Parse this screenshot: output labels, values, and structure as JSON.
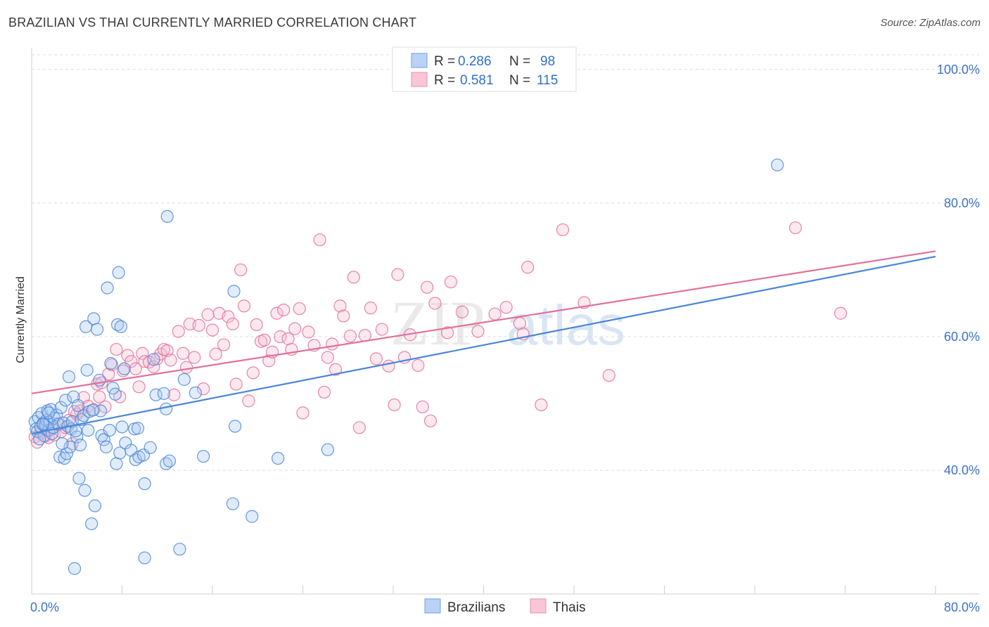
{
  "title": "BRAZILIAN VS THAI CURRENTLY MARRIED CORRELATION CHART",
  "source": "Source: ZipAtlas.com",
  "watermark": {
    "zip": "ZIP",
    "atlas": "atlas"
  },
  "legend": {
    "series": [
      {
        "r_label": "R =",
        "r_value": "0.286",
        "n_label": "N =",
        "n_value": "98",
        "fill": "#b9d2f5",
        "stroke": "#6fa0e6"
      },
      {
        "r_label": "R =",
        "r_value": "0.581",
        "n_label": "N =",
        "n_value": "115",
        "fill": "#f8c6d6",
        "stroke": "#ee8fb0"
      }
    ]
  },
  "chart_data": {
    "type": "scatter",
    "xlabel": "",
    "ylabel": "Currently Married",
    "xlim": [
      0,
      80
    ],
    "ylim": [
      20,
      102
    ],
    "x_tick_labels": [
      "0.0%",
      "80.0%"
    ],
    "y_ticks": [
      40,
      60,
      80,
      100
    ],
    "y_tick_labels": [
      "40.0%",
      "60.0%",
      "80.0%",
      "100.0%"
    ],
    "grid": true,
    "legend_position": "top-center",
    "series": [
      {
        "name": "Brazilians",
        "color": "#4a86d8",
        "fill": "#a9c8f0",
        "trend": {
          "x0": 0,
          "y0": 45.5,
          "x1": 80,
          "y1": 72.0
        },
        "points": [
          [
            0.3,
            47.3
          ],
          [
            0.4,
            46.2
          ],
          [
            0.5,
            45.8
          ],
          [
            0.6,
            47.9
          ],
          [
            0.8,
            46.5
          ],
          [
            0.9,
            48.5
          ],
          [
            1.0,
            47.0
          ],
          [
            1.1,
            45.2
          ],
          [
            1.2,
            46.8
          ],
          [
            1.3,
            47.5
          ],
          [
            1.4,
            48.9
          ],
          [
            1.5,
            46.0
          ],
          [
            1.6,
            47.2
          ],
          [
            1.7,
            49.1
          ],
          [
            1.8,
            45.5
          ],
          [
            1.9,
            46.4
          ],
          [
            2.0,
            47.8
          ],
          [
            2.2,
            48.3
          ],
          [
            2.4,
            46.9
          ],
          [
            2.5,
            42.0
          ],
          [
            2.6,
            49.4
          ],
          [
            2.8,
            47.1
          ],
          [
            2.9,
            41.8
          ],
          [
            3.0,
            50.5
          ],
          [
            3.1,
            42.5
          ],
          [
            3.2,
            46.6
          ],
          [
            3.3,
            54.0
          ],
          [
            3.4,
            43.5
          ],
          [
            3.5,
            46.2
          ],
          [
            3.6,
            47.3
          ],
          [
            3.7,
            51.0
          ],
          [
            3.8,
            25.3
          ],
          [
            4.0,
            45.0
          ],
          [
            4.1,
            49.7
          ],
          [
            4.2,
            38.8
          ],
          [
            4.3,
            43.8
          ],
          [
            4.4,
            47.6
          ],
          [
            4.6,
            48.2
          ],
          [
            4.7,
            37.0
          ],
          [
            4.8,
            61.5
          ],
          [
            4.9,
            55.0
          ],
          [
            5.0,
            46.0
          ],
          [
            5.1,
            48.8
          ],
          [
            5.3,
            32.0
          ],
          [
            5.5,
            62.7
          ],
          [
            5.6,
            34.7
          ],
          [
            5.8,
            61.1
          ],
          [
            6.0,
            53.5
          ],
          [
            6.1,
            48.9
          ],
          [
            6.2,
            45.2
          ],
          [
            6.4,
            44.6
          ],
          [
            6.6,
            43.5
          ],
          [
            6.7,
            67.3
          ],
          [
            6.9,
            46.0
          ],
          [
            7.0,
            56.0
          ],
          [
            7.2,
            52.3
          ],
          [
            7.4,
            51.4
          ],
          [
            7.5,
            41.0
          ],
          [
            7.6,
            61.8
          ],
          [
            7.7,
            69.6
          ],
          [
            7.8,
            42.6
          ],
          [
            7.9,
            61.5
          ],
          [
            8.0,
            46.5
          ],
          [
            8.2,
            55.2
          ],
          [
            8.3,
            44.1
          ],
          [
            8.8,
            43.0
          ],
          [
            9.1,
            46.2
          ],
          [
            9.2,
            41.6
          ],
          [
            9.4,
            46.3
          ],
          [
            9.5,
            42.0
          ],
          [
            9.9,
            42.3
          ],
          [
            10.0,
            38.0
          ],
          [
            10.0,
            26.9
          ],
          [
            10.5,
            43.4
          ],
          [
            10.8,
            56.6
          ],
          [
            11.0,
            51.3
          ],
          [
            11.7,
            51.5
          ],
          [
            11.9,
            41.0
          ],
          [
            11.9,
            49.2
          ],
          [
            12.0,
            78.0
          ],
          [
            12.2,
            41.4
          ],
          [
            13.1,
            28.2
          ],
          [
            13.5,
            53.6
          ],
          [
            14.5,
            51.6
          ],
          [
            15.2,
            42.1
          ],
          [
            17.8,
            35.0
          ],
          [
            17.9,
            66.8
          ],
          [
            18.0,
            46.6
          ],
          [
            19.5,
            33.1
          ],
          [
            21.8,
            41.8
          ],
          [
            26.2,
            43.1
          ],
          [
            66.0,
            85.7
          ],
          [
            1.0,
            46.9
          ],
          [
            2.7,
            44.0
          ],
          [
            0.7,
            44.7
          ],
          [
            1.5,
            48.6
          ],
          [
            3.9,
            45.9
          ],
          [
            5.4,
            49.0
          ]
        ]
      },
      {
        "name": "Thais",
        "color": "#e0719a",
        "fill": "#f6bed0",
        "trend": {
          "x0": 0,
          "y0": 51.5,
          "x1": 80,
          "y1": 72.8
        },
        "points": [
          [
            0.3,
            45.0
          ],
          [
            0.5,
            44.2
          ],
          [
            0.8,
            45.6
          ],
          [
            1.0,
            46.8
          ],
          [
            1.2,
            45.1
          ],
          [
            1.5,
            44.9
          ],
          [
            1.8,
            46.2
          ],
          [
            2.0,
            45.3
          ],
          [
            2.3,
            47.0
          ],
          [
            2.6,
            45.8
          ],
          [
            3.0,
            46.4
          ],
          [
            3.3,
            47.5
          ],
          [
            3.6,
            44.0
          ],
          [
            4.0,
            48.4
          ],
          [
            4.3,
            48.9
          ],
          [
            4.6,
            50.9
          ],
          [
            5.0,
            49.6
          ],
          [
            5.5,
            49.1
          ],
          [
            5.8,
            52.9
          ],
          [
            6.2,
            53.1
          ],
          [
            6.5,
            49.5
          ],
          [
            6.8,
            54.4
          ],
          [
            7.1,
            55.8
          ],
          [
            7.5,
            58.1
          ],
          [
            7.8,
            51.0
          ],
          [
            8.1,
            54.9
          ],
          [
            8.5,
            57.2
          ],
          [
            8.8,
            56.3
          ],
          [
            9.2,
            55.2
          ],
          [
            9.5,
            52.5
          ],
          [
            9.8,
            57.5
          ],
          [
            10.0,
            56.3
          ],
          [
            10.4,
            56.2
          ],
          [
            10.8,
            55.5
          ],
          [
            11.1,
            56.7
          ],
          [
            11.4,
            57.4
          ],
          [
            11.7,
            58.1
          ],
          [
            12.0,
            57.9
          ],
          [
            12.3,
            56.5
          ],
          [
            12.6,
            51.3
          ],
          [
            13.0,
            60.8
          ],
          [
            13.4,
            57.5
          ],
          [
            13.7,
            55.4
          ],
          [
            14.0,
            61.9
          ],
          [
            14.4,
            56.9
          ],
          [
            14.8,
            61.7
          ],
          [
            15.2,
            52.2
          ],
          [
            15.6,
            63.3
          ],
          [
            16.0,
            61.0
          ],
          [
            16.3,
            57.4
          ],
          [
            16.6,
            63.5
          ],
          [
            17.0,
            58.8
          ],
          [
            17.4,
            63.0
          ],
          [
            17.8,
            61.9
          ],
          [
            18.1,
            52.9
          ],
          [
            18.5,
            70.0
          ],
          [
            18.8,
            64.6
          ],
          [
            19.2,
            50.4
          ],
          [
            19.6,
            54.6
          ],
          [
            19.9,
            61.8
          ],
          [
            20.3,
            59.3
          ],
          [
            20.6,
            59.5
          ],
          [
            21.0,
            56.4
          ],
          [
            21.3,
            57.7
          ],
          [
            21.7,
            63.5
          ],
          [
            22.0,
            60.0
          ],
          [
            22.3,
            64.0
          ],
          [
            22.7,
            59.7
          ],
          [
            23.0,
            58.1
          ],
          [
            23.3,
            61.2
          ],
          [
            23.7,
            64.2
          ],
          [
            24.0,
            48.6
          ],
          [
            24.5,
            60.7
          ],
          [
            25.0,
            58.7
          ],
          [
            25.5,
            74.5
          ],
          [
            25.9,
            51.7
          ],
          [
            26.2,
            56.9
          ],
          [
            26.6,
            58.9
          ],
          [
            26.9,
            55.1
          ],
          [
            27.3,
            64.6
          ],
          [
            27.6,
            63.1
          ],
          [
            28.2,
            60.1
          ],
          [
            28.5,
            68.9
          ],
          [
            29.0,
            46.4
          ],
          [
            29.5,
            60.2
          ],
          [
            30.0,
            64.3
          ],
          [
            30.5,
            56.7
          ],
          [
            31.0,
            61.1
          ],
          [
            31.6,
            55.6
          ],
          [
            32.1,
            49.8
          ],
          [
            32.4,
            69.3
          ],
          [
            33.0,
            56.9
          ],
          [
            33.5,
            60.3
          ],
          [
            34.2,
            55.7
          ],
          [
            34.6,
            49.5
          ],
          [
            35.0,
            67.4
          ],
          [
            35.3,
            47.4
          ],
          [
            35.7,
            65.0
          ],
          [
            36.8,
            60.6
          ],
          [
            37.1,
            68.2
          ],
          [
            38.1,
            63.7
          ],
          [
            39.5,
            60.8
          ],
          [
            41.0,
            63.4
          ],
          [
            42.0,
            64.4
          ],
          [
            43.2,
            62.0
          ],
          [
            43.5,
            60.4
          ],
          [
            43.9,
            70.4
          ],
          [
            45.1,
            49.8
          ],
          [
            47.0,
            76.0
          ],
          [
            48.9,
            65.1
          ],
          [
            51.1,
            54.2
          ],
          [
            67.6,
            76.3
          ],
          [
            71.6,
            63.5
          ],
          [
            6.0,
            51.0
          ],
          [
            3.8,
            48.8
          ]
        ]
      }
    ]
  }
}
